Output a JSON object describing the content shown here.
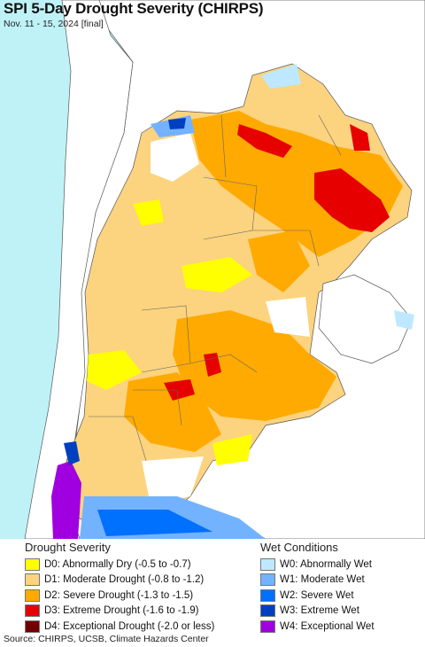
{
  "title": "SPI 5-Day Drought Severity (CHIRPS)",
  "subtitle": "Nov. 11 - 15, 2024 [final]",
  "legend": {
    "drought": {
      "heading": "Drought Severity",
      "items": [
        {
          "label": "D0: Abnormally Dry (-0.5 to -0.7)",
          "color": "#ffff00"
        },
        {
          "label": "D1: Moderate Drought (-0.8 to -1.2)",
          "color": "#fcd37f"
        },
        {
          "label": "D2: Severe Drought (-1.3 to -1.5)",
          "color": "#ffaa00"
        },
        {
          "label": "D3: Extreme Drought (-1.6 to -1.9)",
          "color": "#e60000"
        },
        {
          "label": "D4: Exceptional Drought (-2.0 or less)",
          "color": "#730000"
        }
      ]
    },
    "wet": {
      "heading": "Wet Conditions",
      "items": [
        {
          "label": "W0: Abnormally Wet",
          "color": "#bee8ff"
        },
        {
          "label": "W1: Moderate Wet",
          "color": "#73b2ff"
        },
        {
          "label": "W2: Severe Wet",
          "color": "#0070ff"
        },
        {
          "label": "W3: Extreme Wet",
          "color": "#0040c0"
        },
        {
          "label": "W4: Exceptional Wet",
          "color": "#a000e0"
        }
      ]
    }
  },
  "source": "Source: CHIRPS, UCSB, Climate Hazards Center"
}
